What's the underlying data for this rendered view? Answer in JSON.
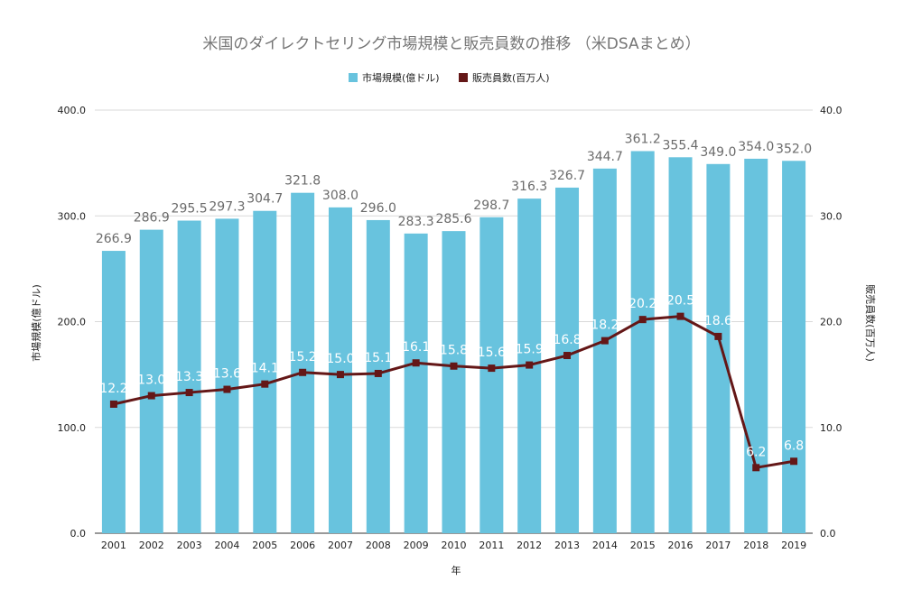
{
  "chart_data": {
    "type": "bar+line",
    "title": "米国のダイレクトセリング市場規模と販売員数の推移 （米DSAまとめ）",
    "xlabel": "年",
    "categories": [
      "2001",
      "2002",
      "2003",
      "2004",
      "2005",
      "2006",
      "2007",
      "2008",
      "2009",
      "2010",
      "2011",
      "2012",
      "2013",
      "2014",
      "2015",
      "2016",
      "2017",
      "2018",
      "2019"
    ],
    "series": [
      {
        "name": "市場規模(億ドル)",
        "kind": "bar",
        "axis": "left",
        "color": "#68c3de",
        "values": [
          266.9,
          286.9,
          295.5,
          297.3,
          304.7,
          321.8,
          308.0,
          296.0,
          283.3,
          285.6,
          298.7,
          316.3,
          326.7,
          344.7,
          361.2,
          355.4,
          349.0,
          354.0,
          352.0
        ]
      },
      {
        "name": "販売員数(百万人)",
        "kind": "line",
        "axis": "right",
        "color": "#641717",
        "values": [
          12.2,
          13.0,
          13.3,
          13.6,
          14.1,
          15.2,
          15.0,
          15.1,
          16.1,
          15.8,
          15.6,
          15.9,
          16.8,
          18.2,
          20.2,
          20.5,
          18.6,
          6.2,
          6.8
        ]
      }
    ],
    "y_left": {
      "label": "市場規模(億ドル)",
      "ylim": [
        0,
        400
      ],
      "ticks": [
        "0.0",
        "100.0",
        "200.0",
        "300.0",
        "400.0"
      ]
    },
    "y_right": {
      "label": "販売員数(百万人)",
      "ylim": [
        0,
        40
      ],
      "ticks": [
        "0.0",
        "10.0",
        "20.0",
        "30.0",
        "40.0"
      ]
    },
    "grid": true,
    "legend": "top-center"
  }
}
